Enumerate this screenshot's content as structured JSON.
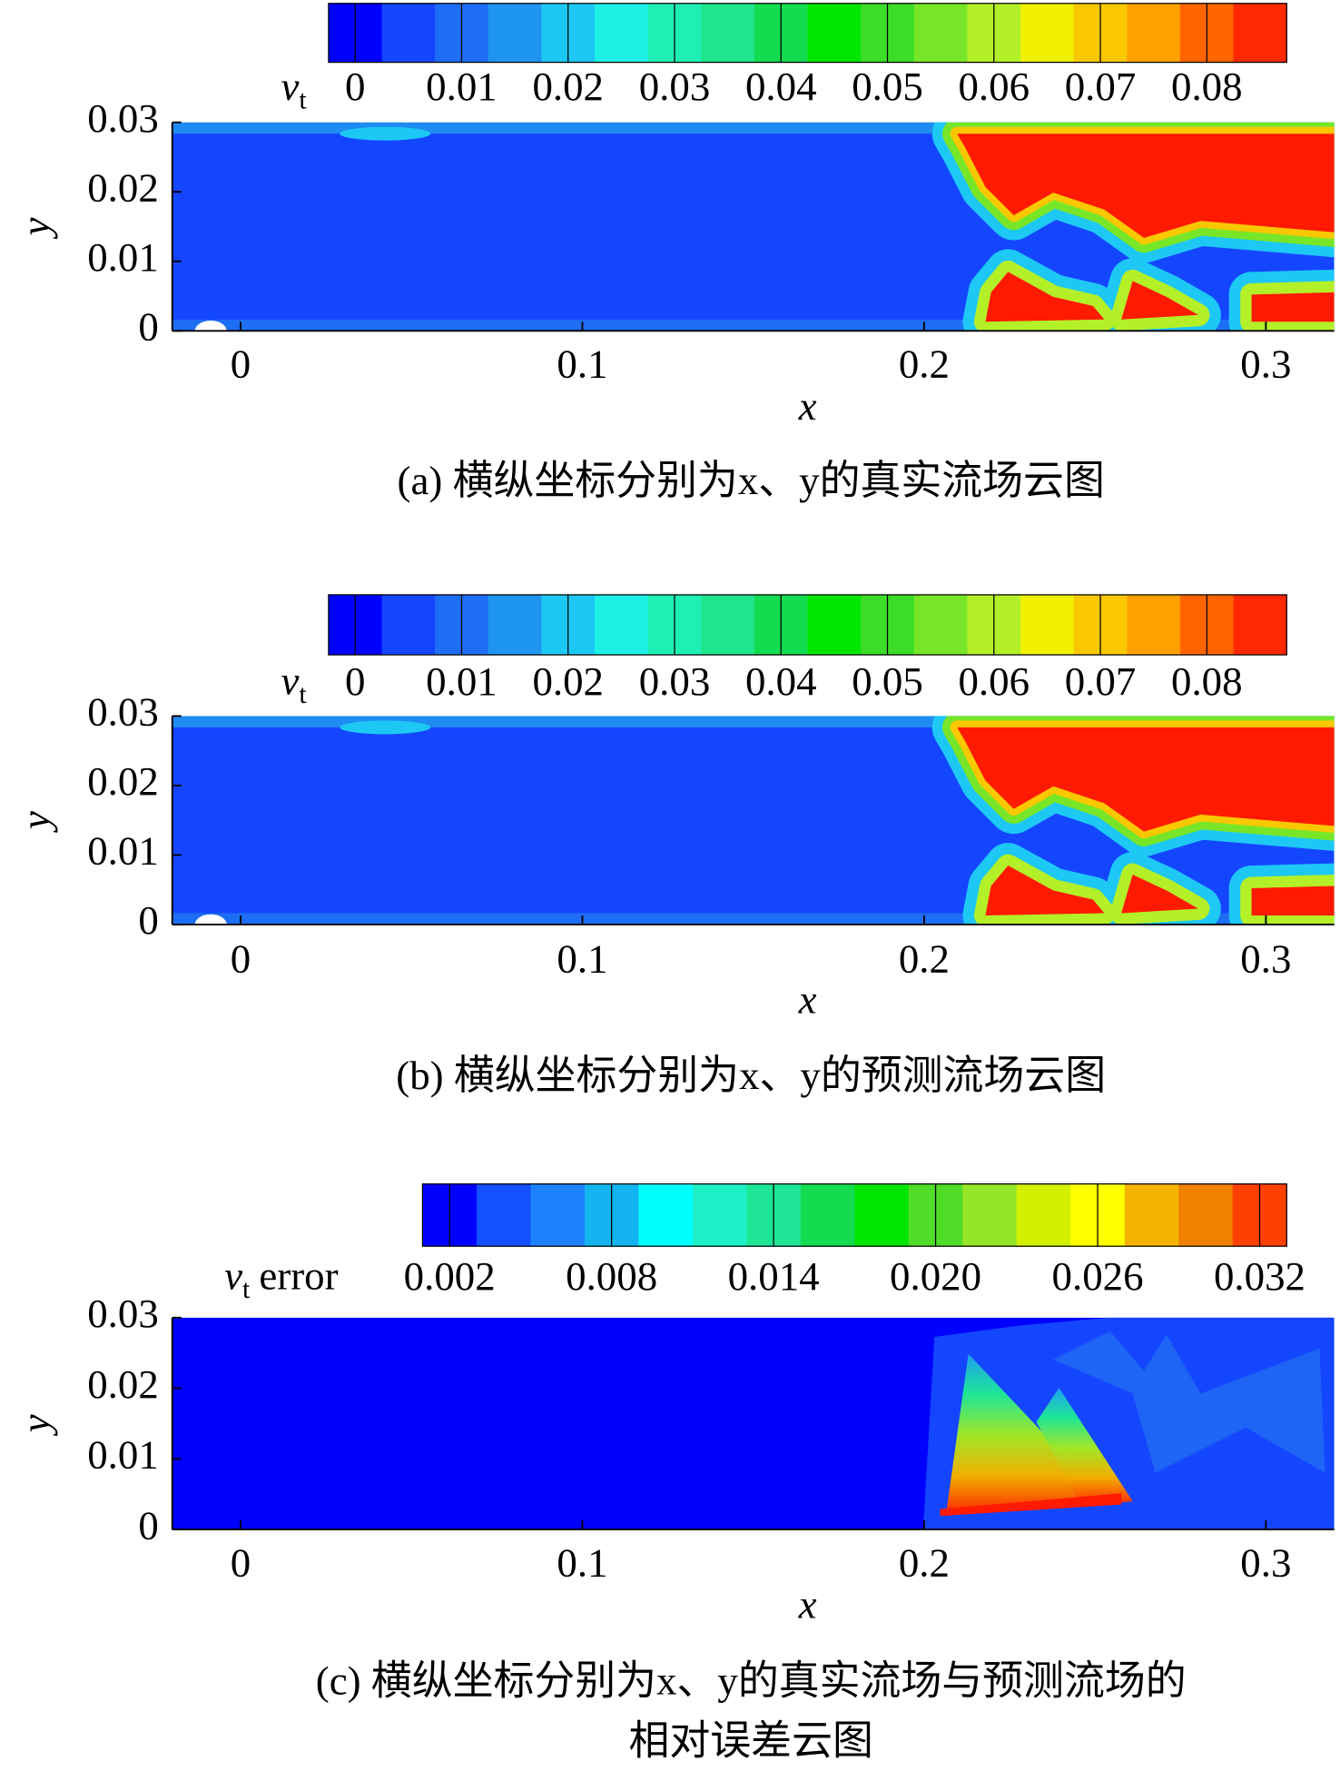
{
  "chart_data": [
    {
      "type": "contour",
      "colorbar_label": "v",
      "colorbar_label_sub": "t",
      "clim": [
        -0.0025,
        0.0875
      ],
      "colorbar_ticks": [
        0,
        0.01,
        0.02,
        0.03,
        0.04,
        0.05,
        0.06,
        0.07,
        0.08
      ],
      "colorbar_colors": [
        "#0000ff",
        "#1446ff",
        "#1e6ef5",
        "#1e96f0",
        "#1ec8f5",
        "#1ef0e6",
        "#1ef0b4",
        "#1ee68c",
        "#14dc50",
        "#00e600",
        "#3cdc28",
        "#78e628",
        "#b4f028",
        "#f0f000",
        "#fac800",
        "#ffa000",
        "#ff6400",
        "#ff2800"
      ],
      "xlim": [
        -0.02,
        0.32
      ],
      "xticks": [
        0,
        0.1,
        0.2,
        0.3
      ],
      "ylim": [
        0,
        0.03
      ],
      "yticks": [
        0,
        0.01,
        0.02,
        0.03
      ],
      "xlabel": "x",
      "ylabel": "y",
      "caption": [
        "(a) 横纵坐标分别为x、y的真实流场云图"
      ]
    },
    {
      "type": "contour",
      "colorbar_label": "v",
      "colorbar_label_sub": "t",
      "clim": [
        -0.0025,
        0.0875
      ],
      "colorbar_ticks": [
        0,
        0.01,
        0.02,
        0.03,
        0.04,
        0.05,
        0.06,
        0.07,
        0.08
      ],
      "colorbar_colors": [
        "#0000ff",
        "#1446ff",
        "#1e6ef5",
        "#1e96f0",
        "#1ec8f5",
        "#1ef0e6",
        "#1ef0b4",
        "#1ee68c",
        "#14dc50",
        "#00e600",
        "#3cdc28",
        "#78e628",
        "#b4f028",
        "#f0f000",
        "#fac800",
        "#ffa000",
        "#ff6400",
        "#ff2800"
      ],
      "xlim": [
        -0.02,
        0.32
      ],
      "xticks": [
        0,
        0.1,
        0.2,
        0.3
      ],
      "ylim": [
        0,
        0.03
      ],
      "yticks": [
        0,
        0.01,
        0.02,
        0.03
      ],
      "xlabel": "x",
      "ylabel": "y",
      "caption": [
        "(b) 横纵坐标分别为x、y的预测流场云图"
      ]
    },
    {
      "type": "contour",
      "colorbar_label": "v",
      "colorbar_label_sub": "t",
      "colorbar_label_suffix": "error",
      "clim": [
        0.001,
        0.033
      ],
      "colorbar_ticks": [
        0.002,
        0.008,
        0.014,
        {
          "value": 0.02,
          "label": "0.020"
        },
        0.026,
        0.032
      ],
      "colorbar_colors": [
        "#0000ff",
        "#1450ff",
        "#1e82ff",
        "#14b4f0",
        "#00ffff",
        "#1ef0c8",
        "#1ee696",
        "#14dc50",
        "#00e600",
        "#50dc28",
        "#96e628",
        "#d2f000",
        "#ffff00",
        "#f5b400",
        "#f08000",
        "#ff4000"
      ],
      "xlim": [
        -0.02,
        0.32
      ],
      "xticks": [
        0,
        0.1,
        0.2,
        0.3
      ],
      "ylim": [
        0,
        0.03
      ],
      "yticks": [
        0,
        0.01,
        0.02,
        0.03
      ],
      "xlabel": "x",
      "ylabel": "y",
      "caption": [
        "(c) 横纵坐标分别为x、y的真实流场与预测流场的",
        "相对误差云图"
      ]
    }
  ]
}
